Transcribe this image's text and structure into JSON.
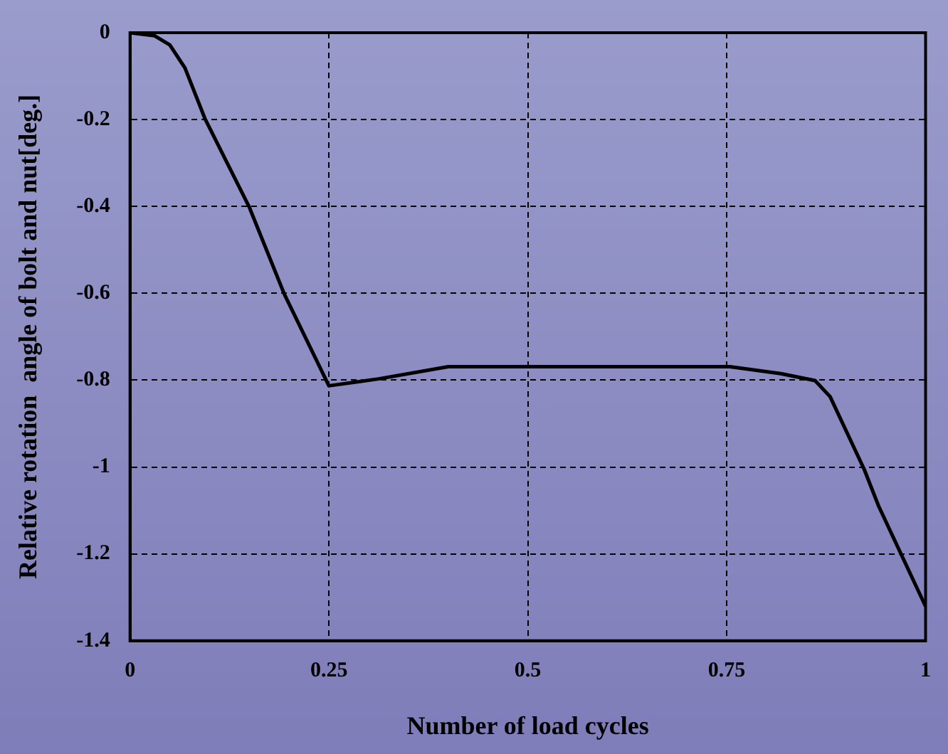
{
  "chart_data": {
    "type": "line",
    "xlabel": "Number of load cycles",
    "ylabel": "Relative rotation  angle of bolt and nut[deg.]",
    "x": [
      0,
      0.031,
      0.05,
      0.069,
      0.094,
      0.15,
      0.194,
      0.25,
      0.3125,
      0.4,
      0.754,
      0.818,
      0.861,
      0.88,
      0.923,
      0.941,
      1.0
    ],
    "series": [
      {
        "color": "#000000",
        "values": [
          0,
          -0.007,
          -0.028,
          -0.081,
          -0.197,
          -0.402,
          -0.602,
          -0.813,
          -0.797,
          -0.769,
          -0.769,
          -0.785,
          -0.801,
          -0.838,
          -1.006,
          -1.09,
          -1.321
        ]
      }
    ],
    "xlim": [
      0,
      1
    ],
    "xticks": [
      0,
      0.25,
      0.5,
      0.75,
      1
    ],
    "ylim": [
      -1.4,
      0
    ],
    "yticks": [
      0,
      -0.2,
      -0.4,
      -0.6,
      -0.8,
      -1,
      -1.2,
      -1.4
    ],
    "grid": true,
    "legend": false,
    "marker": "none",
    "line_style": "solid"
  }
}
